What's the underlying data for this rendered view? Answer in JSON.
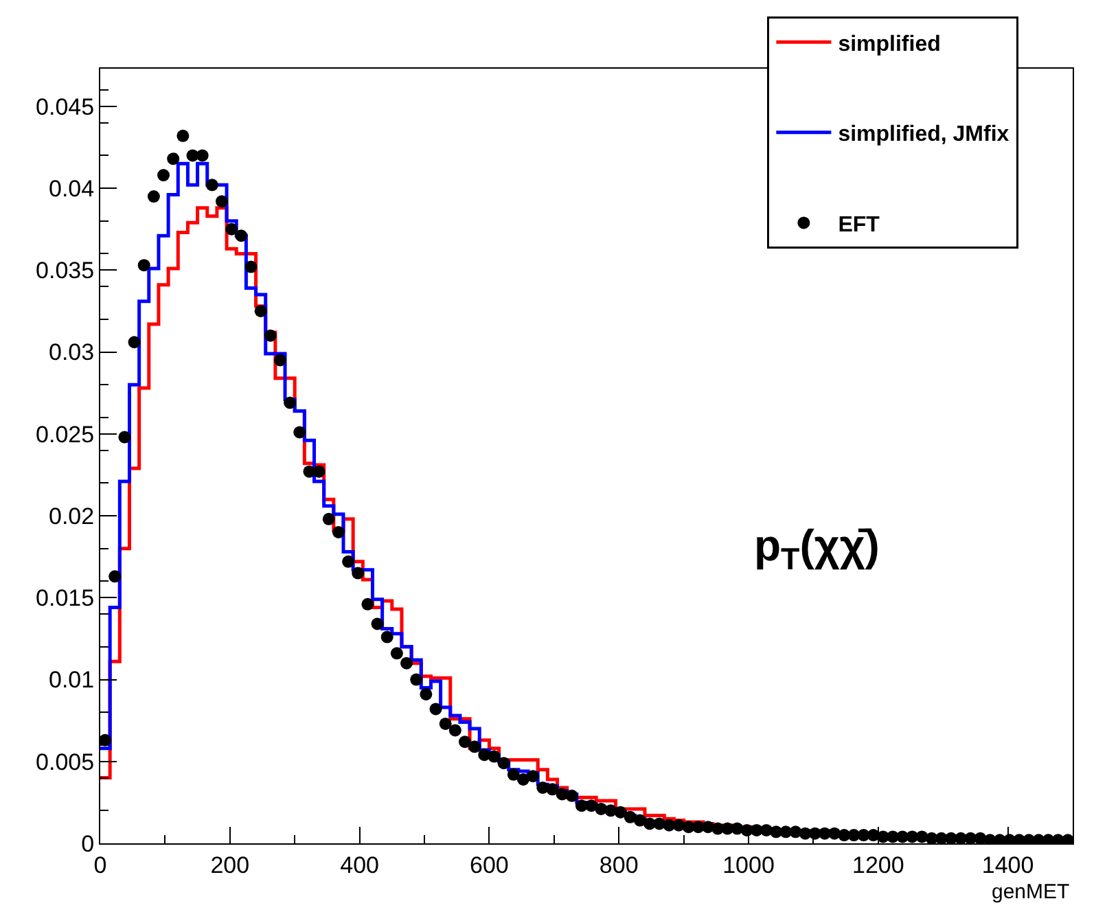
{
  "chart_data": {
    "type": "histogram",
    "bins": [
      0,
      15,
      30,
      45,
      60,
      75,
      90,
      105,
      120,
      135,
      150,
      165,
      180,
      195,
      210,
      225,
      240,
      255,
      270,
      285,
      300,
      315,
      330,
      345,
      360,
      375,
      390,
      405,
      420,
      435,
      450,
      465,
      480,
      495,
      510,
      525,
      540,
      555,
      570,
      585,
      600,
      615,
      630,
      645,
      660,
      675,
      690,
      705,
      720,
      735,
      750,
      765,
      780,
      795,
      810,
      825,
      840,
      855,
      870,
      885,
      900,
      915,
      930,
      945,
      960,
      975,
      990,
      1005,
      1020,
      1035,
      1050,
      1065,
      1080,
      1095,
      1110,
      1125,
      1140,
      1155,
      1170,
      1185,
      1200,
      1215,
      1230,
      1245,
      1260,
      1275,
      1290,
      1305,
      1320,
      1335,
      1350,
      1365,
      1380,
      1395,
      1410,
      1425,
      1440,
      1455,
      1470,
      1485,
      1500
    ],
    "series": [
      {
        "name": "simplified",
        "color": "#ff0000",
        "values": [
          0.004,
          0.0111,
          0.018,
          0.0229,
          0.0278,
          0.0317,
          0.0341,
          0.0351,
          0.0373,
          0.0379,
          0.0388,
          0.0383,
          0.0388,
          0.0363,
          0.036,
          0.036,
          0.0328,
          0.0312,
          0.0284,
          0.0284,
          0.0264,
          0.0232,
          0.0231,
          0.021,
          0.0191,
          0.0198,
          0.0172,
          0.0161,
          0.0144,
          0.0148,
          0.0143,
          0.012,
          0.011,
          0.0102,
          0.0101,
          0.0101,
          0.0076,
          0.0076,
          0.0058,
          0.0063,
          0.0058,
          0.0051,
          0.0051,
          0.0051,
          0.0051,
          0.0045,
          0.0039,
          0.0034,
          0.0028,
          0.0028,
          0.0028,
          0.0026,
          0.0026,
          0.0021,
          0.0021,
          0.0021,
          0.0017,
          0.0017,
          0.0015,
          0.0014,
          0.0013,
          0.0013,
          0.0012,
          0.0011,
          0.0011,
          0.001,
          0.001,
          0.0009,
          0.0009,
          0.0008,
          0.0007,
          0.0007,
          0.0006,
          0.0006,
          0.0006,
          0.0006,
          0.0005,
          0.0005,
          0.0005,
          0.0005,
          0.0004,
          0.0004,
          0.0004,
          0.0004,
          0.0004,
          0.0003,
          0.0003,
          0.0003,
          0.0003,
          0.0003,
          0.0003,
          0.0002,
          0.0002,
          0.0002,
          0.0002,
          0.0002,
          0.0002,
          0.0002,
          0.0002,
          0.0002
        ]
      },
      {
        "name": "simplified, JMfix",
        "color": "#0000ff",
        "values": [
          0.0058,
          0.0144,
          0.0221,
          0.028,
          0.0331,
          0.0351,
          0.0371,
          0.0396,
          0.0415,
          0.0402,
          0.0415,
          0.0402,
          0.0402,
          0.038,
          0.0371,
          0.0339,
          0.0335,
          0.0299,
          0.0299,
          0.0271,
          0.0264,
          0.0246,
          0.0221,
          0.0206,
          0.0201,
          0.0178,
          0.0167,
          0.0167,
          0.0149,
          0.0131,
          0.0128,
          0.012,
          0.0112,
          0.0095,
          0.0099,
          0.0083,
          0.0078,
          0.0074,
          0.007,
          0.0057,
          0.0054,
          0.005,
          0.0045,
          0.0044,
          0.0043,
          0.0036,
          0.0035,
          0.0032,
          0.003,
          0.0025,
          0.0024,
          0.0022,
          0.0021,
          0.0019,
          0.0017,
          0.0015,
          0.0013,
          0.0013,
          0.0012,
          0.0011,
          0.001,
          0.001,
          0.001,
          0.0009,
          0.0009,
          0.0009,
          0.0008,
          0.0008,
          0.0008,
          0.0007,
          0.0007,
          0.0007,
          0.0006,
          0.0006,
          0.0006,
          0.0006,
          0.0005,
          0.0005,
          0.0005,
          0.0005,
          0.0004,
          0.0004,
          0.0004,
          0.0004,
          0.0004,
          0.0003,
          0.0003,
          0.0003,
          0.0003,
          0.0003,
          0.0003,
          0.0002,
          0.0002,
          0.0002,
          0.0002,
          0.0002,
          0.0002,
          0.0002,
          0.0002,
          0.0002
        ]
      },
      {
        "name": "EFT",
        "type": "scatter",
        "marker": "circle",
        "color": "#000000",
        "x": [
          7.5,
          22.5,
          37.5,
          52.5,
          67.5,
          82.5,
          97.5,
          112.5,
          127.5,
          142.5,
          157.5,
          172.5,
          187.5,
          202.5,
          217.5,
          232.5,
          247.5,
          262.5,
          277.5,
          292.5,
          307.5,
          322.5,
          337.5,
          352.5,
          367.5,
          382.5,
          397.5,
          412.5,
          427.5,
          442.5,
          457.5,
          472.5,
          487.5,
          502.5,
          517.5,
          532.5,
          547.5,
          562.5,
          577.5,
          592.5,
          607.5,
          622.5,
          637.5,
          652.5,
          667.5,
          682.5,
          697.5,
          712.5,
          727.5,
          742.5,
          757.5,
          772.5,
          787.5,
          802.5,
          817.5,
          832.5,
          847.5,
          862.5,
          877.5,
          892.5,
          907.5,
          922.5,
          937.5,
          952.5,
          967.5,
          982.5,
          997.5,
          1012.5,
          1027.5,
          1042.5,
          1057.5,
          1072.5,
          1087.5,
          1102.5,
          1117.5,
          1132.5,
          1147.5,
          1162.5,
          1177.5,
          1192.5,
          1207.5,
          1222.5,
          1237.5,
          1252.5,
          1267.5,
          1282.5,
          1297.5,
          1312.5,
          1327.5,
          1342.5,
          1357.5,
          1372.5,
          1387.5,
          1402.5,
          1417.5,
          1432.5,
          1447.5,
          1462.5,
          1477.5,
          1492.5
        ],
        "values": [
          0.0063,
          0.0163,
          0.0248,
          0.0306,
          0.0353,
          0.0395,
          0.0408,
          0.0418,
          0.0432,
          0.042,
          0.042,
          0.0402,
          0.0392,
          0.0375,
          0.0371,
          0.0352,
          0.0325,
          0.031,
          0.0295,
          0.0269,
          0.0251,
          0.0227,
          0.0227,
          0.0198,
          0.019,
          0.0172,
          0.0165,
          0.0146,
          0.0134,
          0.0126,
          0.0116,
          0.011,
          0.01,
          0.0091,
          0.0082,
          0.0073,
          0.0069,
          0.0062,
          0.0059,
          0.0054,
          0.0053,
          0.0049,
          0.0042,
          0.0039,
          0.0041,
          0.0034,
          0.0033,
          0.003,
          0.0029,
          0.0023,
          0.0023,
          0.0021,
          0.002,
          0.0019,
          0.0016,
          0.0014,
          0.0012,
          0.0012,
          0.0011,
          0.0011,
          0.001,
          0.001,
          0.001,
          0.0009,
          0.0009,
          0.0009,
          0.0008,
          0.0008,
          0.0008,
          0.0007,
          0.0007,
          0.0007,
          0.0006,
          0.0006,
          0.0006,
          0.0006,
          0.0005,
          0.0005,
          0.0005,
          0.0005,
          0.0004,
          0.0004,
          0.0004,
          0.0004,
          0.0004,
          0.0003,
          0.0003,
          0.0003,
          0.0003,
          0.0003,
          0.0003,
          0.0002,
          0.0002,
          0.0002,
          0.0002,
          0.0002,
          0.0002,
          0.0002,
          0.0002,
          0.0002
        ]
      }
    ],
    "xlabel": "genMET",
    "annotations": [
      "p$_{T}$(χχ̄)"
    ],
    "xlim": [
      0,
      1500
    ],
    "xticks": [
      0,
      200,
      400,
      600,
      800,
      1000,
      1200,
      1400
    ],
    "ylim": [
      0,
      0.0473
    ],
    "yticks": [
      0,
      0.005,
      0.01,
      0.015,
      0.02,
      0.025,
      0.03,
      0.035,
      0.04,
      0.045
    ],
    "legend": "top right"
  }
}
